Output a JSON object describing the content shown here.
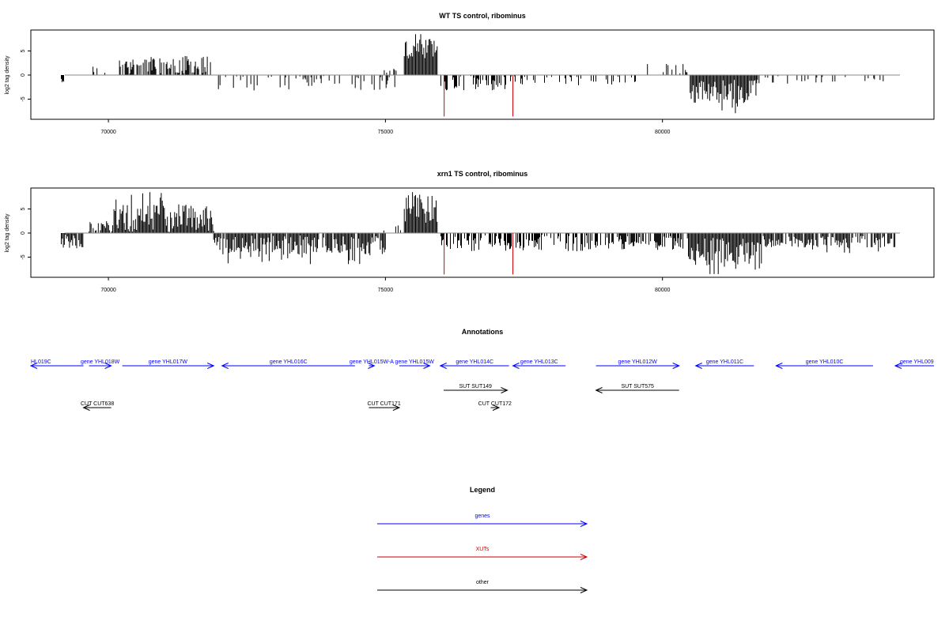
{
  "chart_data": [
    {
      "type": "bar",
      "title": "WT TS control, ribominus",
      "ylabel": "log2 tag density",
      "xlim": [
        68600,
        84900
      ],
      "ylim": [
        -9,
        9.5
      ],
      "x_ticks": [
        70000,
        75000,
        80000
      ],
      "x_tick_labels": [
        "70000",
        "75000",
        "80000"
      ],
      "y_ticks": [
        5,
        0,
        -5
      ],
      "y_tick_labels": [
        "5",
        "0",
        "-5"
      ],
      "baseline_color": "#888888",
      "bar_color": "#000000",
      "highlight_color": "#cc0000",
      "highlight_bars": [
        {
          "x": 76060,
          "value": -8.6
        },
        {
          "x": 77300,
          "value": -8.6
        }
      ],
      "regions": [
        {
          "from": 69150,
          "to": 69200,
          "sign": -1,
          "mean": 1.0,
          "amp": 0.5,
          "density": 1.0,
          "pattern": "sparse"
        },
        {
          "from": 69650,
          "to": 70000,
          "sign": 1,
          "mean": 1.5,
          "amp": 1.5,
          "density": 0.25,
          "pattern": "sparse"
        },
        {
          "from": 70200,
          "to": 71850,
          "sign": 1,
          "mean": 2.0,
          "amp": 2.0,
          "density": 0.6,
          "pattern": "sparse"
        },
        {
          "from": 71900,
          "to": 75250,
          "sign": -1,
          "mean": 1.6,
          "amp": 1.6,
          "density": 0.22,
          "pattern": "sparse"
        },
        {
          "from": 74950,
          "to": 75250,
          "sign": 1,
          "mean": 0.8,
          "amp": 0.8,
          "density": 0.2,
          "pattern": "sparse"
        },
        {
          "from": 75340,
          "to": 75950,
          "sign": 1,
          "mean": 5.0,
          "amp": 2.5,
          "density": 1.0,
          "pattern": "dense"
        },
        {
          "from": 76000,
          "to": 77200,
          "sign": -1,
          "mean": 1.8,
          "amp": 1.6,
          "density": 0.45,
          "pattern": "sparse"
        },
        {
          "from": 77200,
          "to": 79700,
          "sign": -1,
          "mean": 1.2,
          "amp": 1.2,
          "density": 0.2,
          "pattern": "sparse"
        },
        {
          "from": 79700,
          "to": 80500,
          "sign": 1,
          "mean": 1.0,
          "amp": 1.5,
          "density": 0.2,
          "pattern": "sparse"
        },
        {
          "from": 80500,
          "to": 81700,
          "sign": -1,
          "mean": 3.5,
          "amp": 2.5,
          "density": 1.0,
          "pattern": "dense"
        },
        {
          "from": 81700,
          "to": 84200,
          "sign": -1,
          "mean": 1.0,
          "amp": 0.8,
          "density": 0.15,
          "pattern": "sparse"
        }
      ]
    },
    {
      "type": "bar",
      "title": "xrn1 TS control, ribominus",
      "ylabel": "log2 tag density",
      "xlim": [
        68600,
        84900
      ],
      "ylim": [
        -9,
        9.5
      ],
      "x_ticks": [
        70000,
        75000,
        80000
      ],
      "x_tick_labels": [
        "70000",
        "75000",
        "80000"
      ],
      "y_ticks": [
        5,
        0,
        -5
      ],
      "y_tick_labels": [
        "5",
        "0",
        "-5"
      ],
      "baseline_color": "#888888",
      "bar_color": "#000000",
      "highlight_color": "#cc0000",
      "highlight_bars": [
        {
          "x": 76060,
          "value": -8.6
        },
        {
          "x": 77300,
          "value": -8.6
        }
      ],
      "regions": [
        {
          "from": 69150,
          "to": 69550,
          "sign": -1,
          "mean": 1.8,
          "amp": 1.5,
          "density": 0.9,
          "pattern": "dense"
        },
        {
          "from": 69650,
          "to": 70100,
          "sign": 1,
          "mean": 1.3,
          "amp": 1.0,
          "density": 0.7,
          "pattern": "dense"
        },
        {
          "from": 70100,
          "to": 71900,
          "sign": 1,
          "mean": 3.0,
          "amp": 3.0,
          "density": 1.0,
          "pattern": "dense"
        },
        {
          "from": 71900,
          "to": 75000,
          "sign": -1,
          "mean": 2.5,
          "amp": 2.0,
          "density": 0.9,
          "pattern": "dense"
        },
        {
          "from": 74900,
          "to": 75300,
          "sign": 1,
          "mean": 0.8,
          "amp": 0.8,
          "density": 0.2,
          "pattern": "sparse"
        },
        {
          "from": 75340,
          "to": 75950,
          "sign": 1,
          "mean": 5.0,
          "amp": 3.0,
          "density": 1.0,
          "pattern": "dense"
        },
        {
          "from": 76000,
          "to": 79000,
          "sign": -1,
          "mean": 2.0,
          "amp": 1.8,
          "density": 0.55,
          "pattern": "sparse"
        },
        {
          "from": 79000,
          "to": 80400,
          "sign": -1,
          "mean": 2.0,
          "amp": 1.5,
          "density": 0.55,
          "pattern": "sparse"
        },
        {
          "from": 80450,
          "to": 81800,
          "sign": -1,
          "mean": 4.0,
          "amp": 3.0,
          "density": 1.0,
          "pattern": "dense"
        },
        {
          "from": 81800,
          "to": 84200,
          "sign": -1,
          "mean": 1.8,
          "amp": 1.2,
          "density": 0.8,
          "pattern": "dense"
        }
      ]
    }
  ],
  "annotations": {
    "title": "Annotations",
    "colors": {
      "gene": "#0000ff",
      "other": "#000000"
    },
    "features": [
      {
        "label": "HL019C",
        "strand": "-",
        "start": 68600,
        "end": 69550,
        "row": 0,
        "kind": "gene"
      },
      {
        "label": "gene YHL018W",
        "strand": "+",
        "start": 69650,
        "end": 70050,
        "row": 0,
        "kind": "gene"
      },
      {
        "label": "gene YHL017W",
        "strand": "+",
        "start": 70250,
        "end": 71900,
        "row": 0,
        "kind": "gene"
      },
      {
        "label": "gene YHL016C",
        "strand": "-",
        "start": 72050,
        "end": 74450,
        "row": 0,
        "kind": "gene"
      },
      {
        "label": "gene YHL015W-A",
        "strand": "+",
        "start": 74700,
        "end": 74800,
        "row": 0,
        "kind": "gene"
      },
      {
        "label": "gene YHL015W",
        "strand": "+",
        "start": 75250,
        "end": 75800,
        "row": 0,
        "kind": "gene"
      },
      {
        "label": "gene YHL014C",
        "strand": "-",
        "start": 75990,
        "end": 77230,
        "row": 0,
        "kind": "gene"
      },
      {
        "label": "gene YHL013C",
        "strand": "-",
        "start": 77300,
        "end": 78250,
        "row": 0,
        "kind": "gene"
      },
      {
        "label": "gene YHL012W",
        "strand": "+",
        "start": 78800,
        "end": 80300,
        "row": 0,
        "kind": "gene"
      },
      {
        "label": "gene YHL011C",
        "strand": "-",
        "start": 80600,
        "end": 81650,
        "row": 0,
        "kind": "gene"
      },
      {
        "label": "gene YHL010C",
        "strand": "-",
        "start": 82050,
        "end": 83800,
        "row": 0,
        "kind": "gene"
      },
      {
        "label": "gene YHL009",
        "strand": "-",
        "start": 84200,
        "end": 84900,
        "row": 0,
        "kind": "gene"
      },
      {
        "label": "SUT SUT149",
        "strand": "+",
        "start": 76050,
        "end": 77200,
        "row": 1,
        "kind": "other"
      },
      {
        "label": "SUT SUT575",
        "strand": "-",
        "start": 78800,
        "end": 80300,
        "row": 1,
        "kind": "other"
      },
      {
        "label": "CUT CUT638",
        "strand": "-",
        "start": 69550,
        "end": 70050,
        "row": 2,
        "kind": "other"
      },
      {
        "label": "CUT CUT171",
        "strand": "+",
        "start": 74700,
        "end": 75250,
        "row": 2,
        "kind": "other"
      },
      {
        "label": "CUT CUT172",
        "strand": "+",
        "start": 76900,
        "end": 77050,
        "row": 2,
        "kind": "other"
      }
    ]
  },
  "legend": {
    "title": "Legend",
    "items": [
      {
        "label": "genes",
        "color": "#0000ff"
      },
      {
        "label": "XUTs",
        "color": "#cc0000"
      },
      {
        "label": "other",
        "color": "#000000"
      }
    ]
  }
}
